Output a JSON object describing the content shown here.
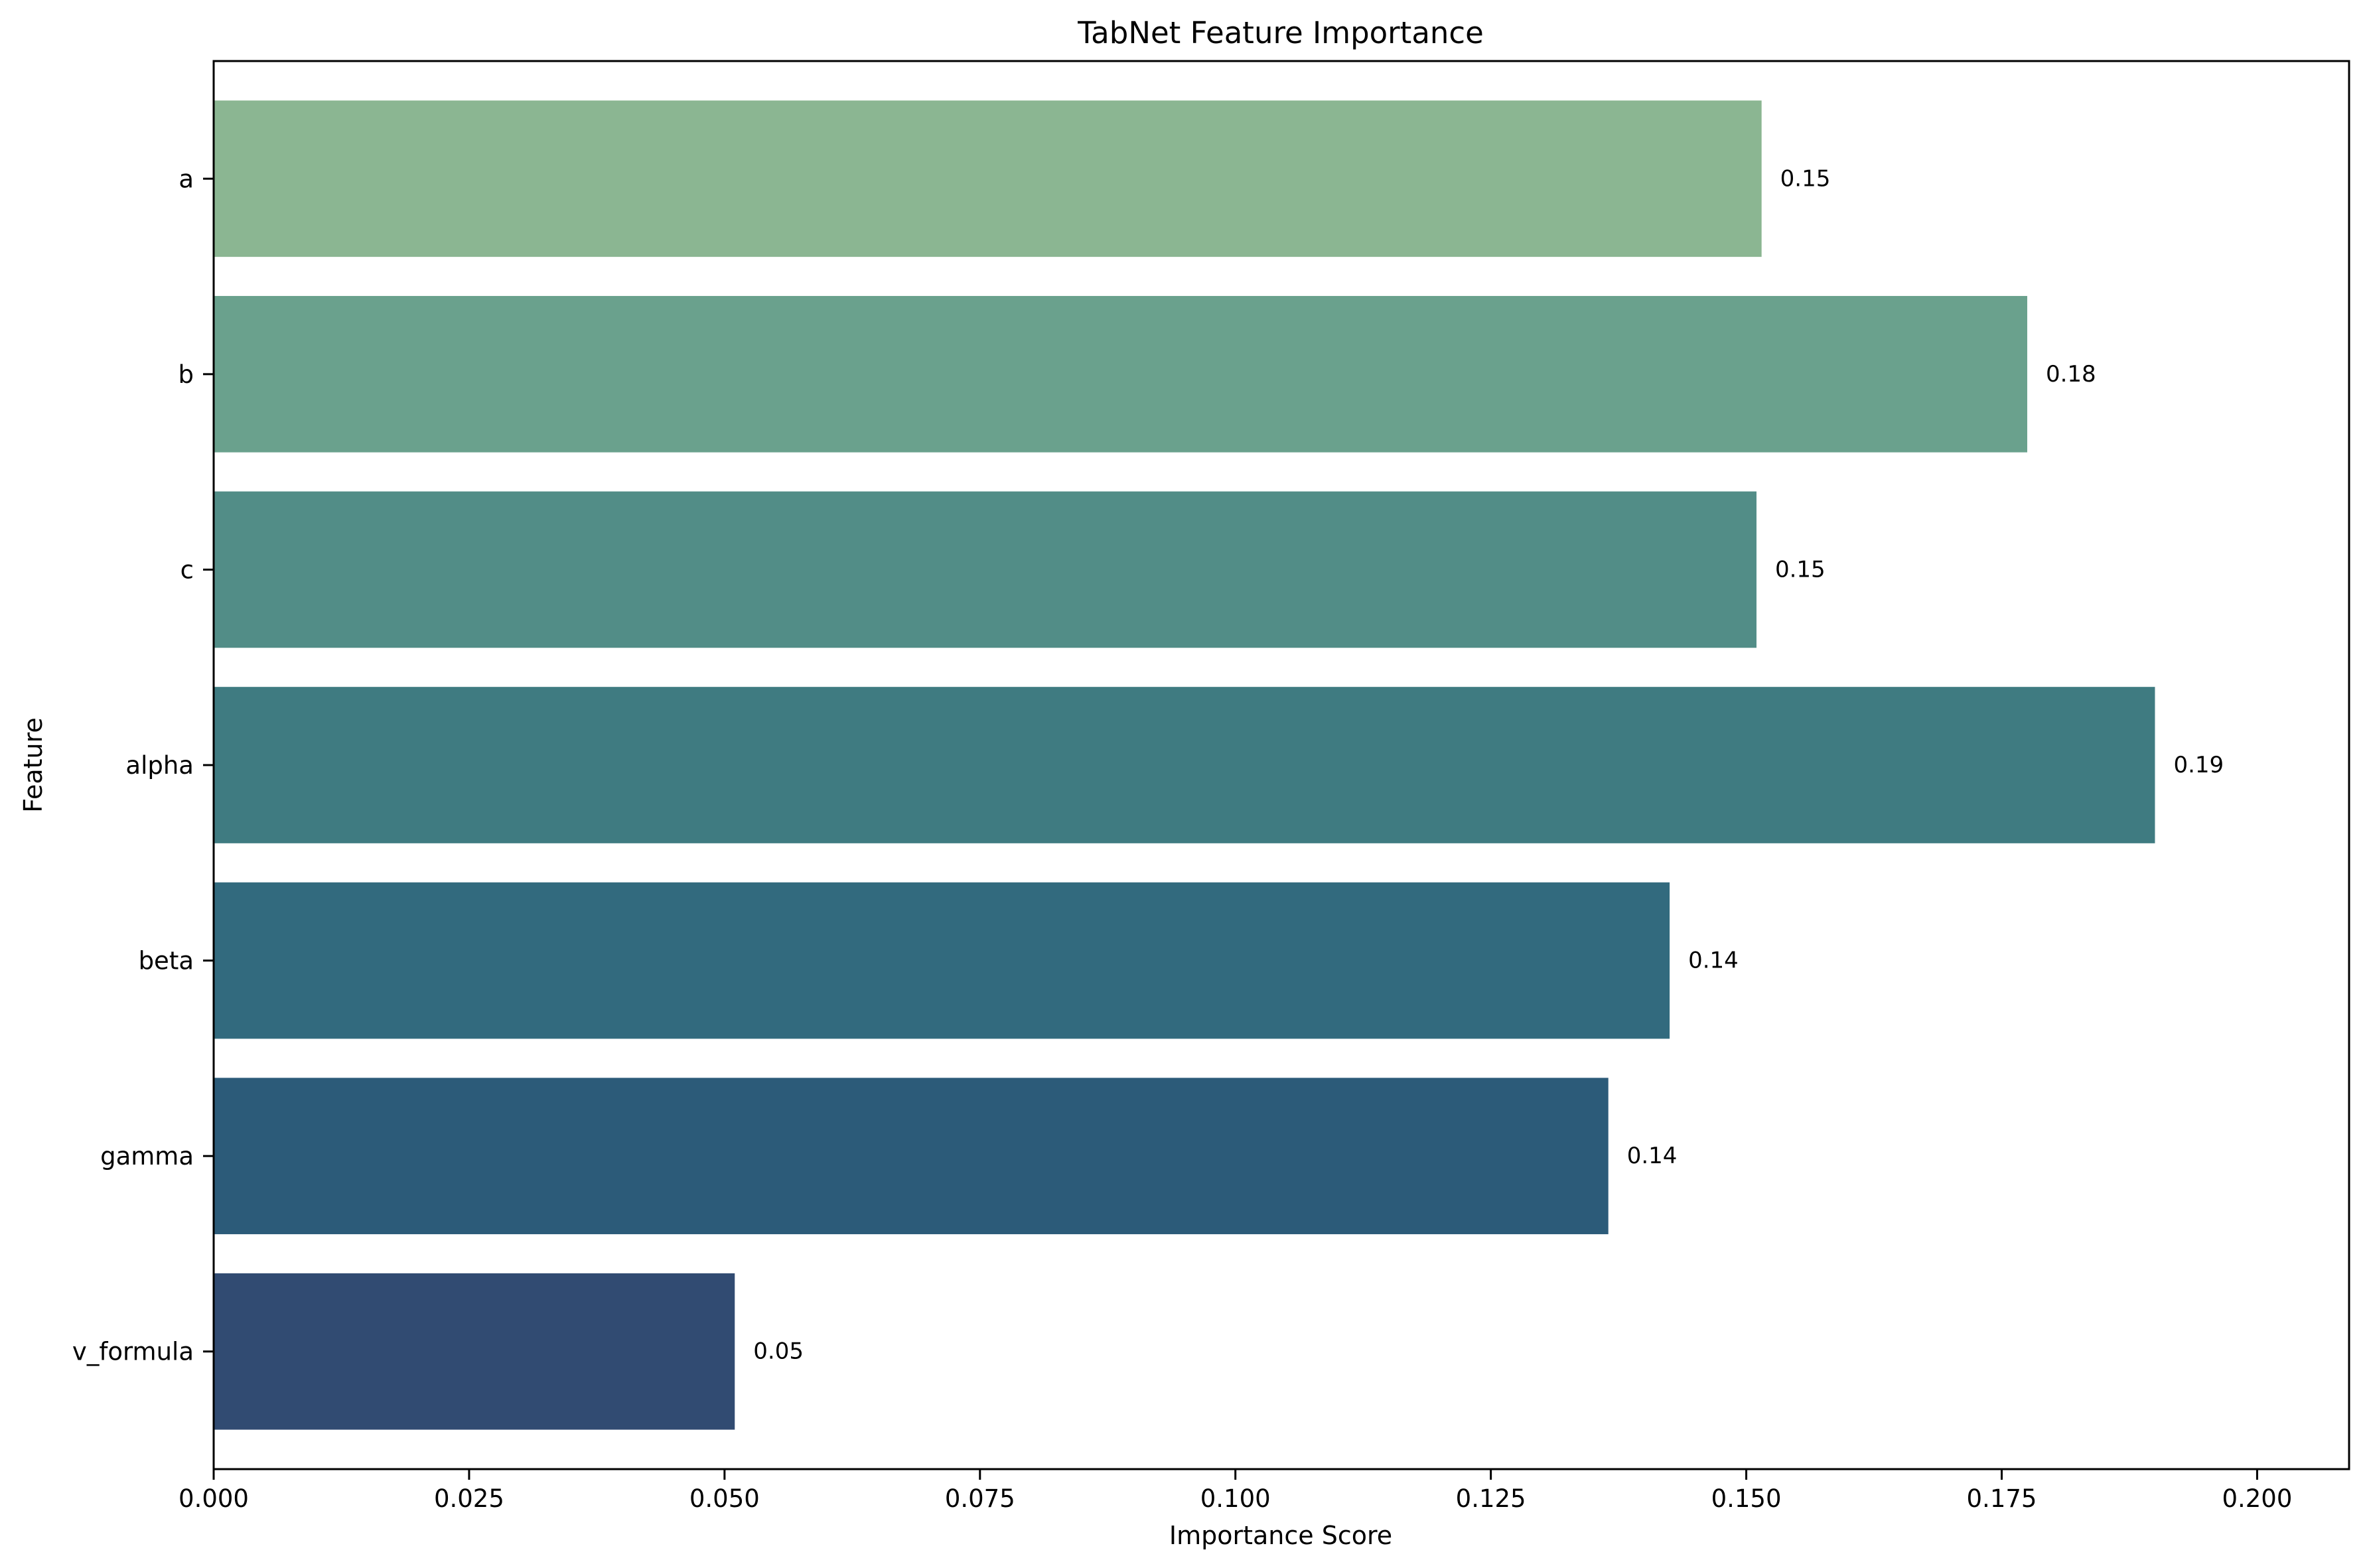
{
  "chart_data": {
    "type": "bar",
    "orientation": "horizontal",
    "title": "TabNet Feature Importance",
    "xlabel": "Importance Score",
    "ylabel": "Feature",
    "categories": [
      "a",
      "b",
      "c",
      "alpha",
      "beta",
      "gamma",
      "v_formula"
    ],
    "values": [
      0.1515,
      0.1775,
      0.151,
      0.19,
      0.1425,
      0.1365,
      0.051
    ],
    "data_labels": [
      "0.15",
      "0.18",
      "0.15",
      "0.19",
      "0.14",
      "0.14",
      "0.05"
    ],
    "xlim": [
      0,
      0.209
    ],
    "xticks": [
      0.0,
      0.025,
      0.05,
      0.075,
      0.1,
      0.125,
      0.15,
      0.175,
      0.2
    ],
    "xtick_labels": [
      "0.000",
      "0.025",
      "0.050",
      "0.075",
      "0.100",
      "0.125",
      "0.150",
      "0.175",
      "0.200"
    ],
    "colors": [
      "#8bb692",
      "#6aa18d",
      "#528d87",
      "#3f7b81",
      "#326a7e",
      "#2c5b79",
      "#314b72"
    ],
    "grid": false,
    "legend": "none"
  }
}
